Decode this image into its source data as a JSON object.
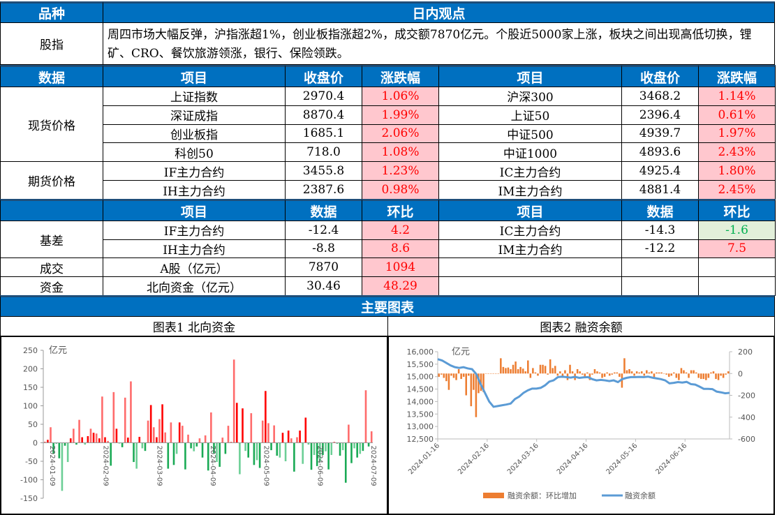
{
  "header": {
    "col1": "品种",
    "col2": "日内观点"
  },
  "summary": {
    "label": "股指",
    "text": "周四市场大幅反弹，沪指涨超1%，创业板指涨超2%，成交额7870亿元。个股近5000家上涨，板块之间出现高低切换，锂矿、CRO、餐饮旅游领涨，银行、保险领跌。"
  },
  "data_header": {
    "c0": "数据",
    "c1": "项目",
    "c2": "收盘价",
    "c3": "涨跌幅",
    "c4": "项目",
    "c5": "收盘价",
    "c6": "涨跌幅"
  },
  "spot": {
    "label": "现货价格",
    "rows": [
      {
        "n1": "上证指数",
        "v1": "2970.4",
        "p1": "1.06%",
        "n2": "沪深300",
        "v2": "3468.2",
        "p2": "1.14%"
      },
      {
        "n1": "深证成指",
        "v1": "8870.4",
        "p1": "1.99%",
        "n2": "上证50",
        "v2": "2396.4",
        "p2": "0.61%"
      },
      {
        "n1": "创业板指",
        "v1": "1685.1",
        "p1": "2.06%",
        "n2": "中证500",
        "v2": "4939.7",
        "p2": "1.97%"
      },
      {
        "n1": "科创50",
        "v1": "718.0",
        "p1": "1.08%",
        "n2": "中证1000",
        "v2": "4893.6",
        "p2": "2.43%"
      }
    ]
  },
  "futures": {
    "label": "期货价格",
    "rows": [
      {
        "n1": "IF主力合约",
        "v1": "3455.8",
        "p1": "1.23%",
        "n2": "IC主力合约",
        "v2": "4925.4",
        "p2": "1.80%"
      },
      {
        "n1": "IH主力合约",
        "v1": "2387.6",
        "p1": "0.98%",
        "n2": "IM主力合约",
        "v2": "4881.4",
        "p2": "2.45%"
      }
    ]
  },
  "basis_header": {
    "c1": "项目",
    "c2": "数据",
    "c3": "环比",
    "c4": "项目",
    "c5": "数据",
    "c6": "环比"
  },
  "basis": {
    "label": "基差",
    "rows": [
      {
        "n1": "IF主力合约",
        "v1": "-12.4",
        "p1": "4.2",
        "n2": "IC主力合约",
        "v2": "-14.3",
        "p2": "-1.6"
      },
      {
        "n1": "IH主力合约",
        "v1": "-8.8",
        "p1": "8.6",
        "n2": "IM主力合约",
        "v2": "-12.2",
        "p2": "7.5"
      }
    ]
  },
  "turnover": {
    "label": "成交",
    "item": "A股（亿元）",
    "value": "7870",
    "change": "1094"
  },
  "capital": {
    "label": "资金",
    "item": "北向资金（亿元）",
    "value": "30.46",
    "change": "48.29"
  },
  "charts_title": "主要图表",
  "colors": {
    "header": "#0070c0",
    "up": "#ff0000",
    "up_bg": "#ffc7ce",
    "down": "#00b050",
    "down_bg": "#e2efda"
  },
  "chart_data": [
    {
      "type": "bar",
      "title": "图表1 北向资金",
      "ylabel": "亿元",
      "ylim": [
        -150,
        250
      ],
      "yticks": [
        "250",
        "200",
        "150",
        "100",
        "50",
        "0",
        "-50",
        "-100",
        "-150"
      ],
      "xticks": [
        "2024-01-09",
        "2024-02-09",
        "2024-03-09",
        "2024-04-09",
        "2024-05-09",
        "2024-06-09",
        "2024-07-09"
      ],
      "values": [
        3,
        8,
        42,
        -30,
        -3,
        -42,
        -130,
        -8,
        -52,
        12,
        38,
        -5,
        62,
        15,
        -5,
        18,
        38,
        27,
        25,
        12,
        125,
        15,
        5,
        -62,
        137,
        38,
        -2,
        -12,
        122,
        14,
        166,
        -52,
        -70,
        16,
        -15,
        -22,
        60,
        102,
        42,
        15,
        64,
        104,
        28,
        -70,
        55,
        -60,
        -30,
        55,
        46,
        -72,
        22,
        -15,
        -23,
        -10,
        12,
        -40,
        20,
        -75,
        82,
        -28,
        -52,
        -65,
        14,
        -30,
        46,
        2,
        225,
        108,
        -85,
        93,
        -22,
        -40,
        80,
        -60,
        -47,
        -68,
        60,
        140,
        53,
        -20,
        47,
        -35,
        -40,
        27,
        -50,
        33,
        12,
        -78,
        15,
        33,
        -57,
        68,
        -5,
        -73,
        -33,
        -63,
        -50,
        -33,
        -23,
        -72,
        -33,
        2,
        -3,
        -35,
        -20,
        -108,
        49,
        -55,
        -15,
        -40,
        -30,
        -22,
        142,
        -10,
        31
      ]
    },
    {
      "type": "bar+line",
      "title": "图表2 融资余额",
      "ylabel": "亿元",
      "ylim": [
        12500,
        16000
      ],
      "y2lim": [
        -600,
        200
      ],
      "yticks": [
        "16,000",
        "15,500",
        "15,000",
        "14,500",
        "14,000",
        "13,500",
        "13,000",
        "12,500"
      ],
      "y2ticks": [
        "200",
        "0",
        "-200",
        "-400",
        "-600"
      ],
      "xticks": [
        "2024-01-16",
        "2024-02-16",
        "2024-03-16",
        "2024-04-16",
        "2024-05-16",
        "2024-06-16"
      ],
      "series": [
        {
          "name": "融资余额：环比增加",
          "axis": "right",
          "color": "#ed7d31",
          "values": [
            -30,
            -10,
            -40,
            -70,
            -150,
            -20,
            -40,
            -60,
            40,
            -50,
            -30,
            -200,
            -20,
            -300,
            -150,
            -400,
            -180,
            -160,
            -170,
            0,
            0,
            0,
            0,
            0,
            0,
            140,
            60,
            50,
            55,
            40,
            80,
            110,
            40,
            60,
            45,
            20,
            120,
            -40,
            50,
            10,
            -20,
            80,
            80,
            70,
            -10,
            130,
            50,
            70,
            -20,
            20,
            -40,
            30,
            -60,
            80,
            20,
            -60,
            40,
            20,
            -10,
            -40,
            10,
            -60,
            -10,
            40,
            20,
            10,
            -40,
            -30,
            10,
            -20,
            -10,
            10,
            10,
            -30,
            -130,
            140,
            30,
            40,
            20,
            -20,
            20,
            10,
            20,
            -20,
            30,
            10,
            20,
            -50,
            10,
            10,
            10,
            0,
            -10,
            -30,
            -20,
            10,
            -40,
            -60,
            50,
            30,
            10,
            -40,
            30,
            30,
            10,
            -40,
            -50,
            -50,
            -60,
            -40,
            10,
            20,
            -50,
            -60,
            -20,
            -40,
            -10,
            20
          ]
        },
        {
          "name": "融资余额",
          "axis": "left",
          "color": "#5b9bd5",
          "values": [
            15700,
            15650,
            15550,
            15450,
            15380,
            15350,
            15380,
            15330,
            15300,
            15100,
            14700,
            14350,
            14000,
            13790,
            13820,
            13850,
            13880,
            13920,
            14100,
            14200,
            14350,
            14450,
            14520,
            14520,
            14550,
            14650,
            14800,
            14850,
            14980,
            15000,
            14980,
            14960,
            14990,
            14950,
            14970,
            14980,
            14900,
            14850,
            14870,
            14850,
            14820,
            14850,
            14780,
            14900,
            14950,
            14980,
            14980,
            14990,
            14980,
            15000,
            14960,
            14930,
            14900,
            14850,
            14730,
            14750,
            14780,
            14760,
            14790,
            14700,
            14680,
            14600,
            14510,
            14510,
            14500,
            14400,
            14370,
            14330,
            14350
          ]
        }
      ]
    }
  ]
}
